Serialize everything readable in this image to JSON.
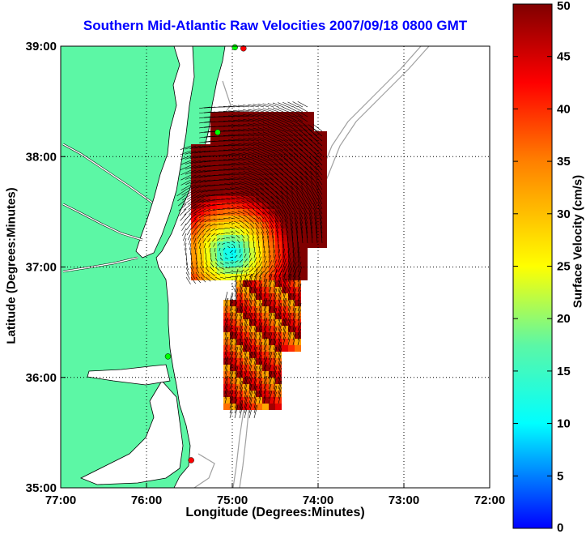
{
  "title": "Southern Mid-Atlantic Raw Velocities 2007/09/18 0800 GMT",
  "x_axis": {
    "label": "Longitude (Degrees:Minutes)",
    "ticks": [
      "77:00",
      "76:00",
      "75:00",
      "74:00",
      "73:00",
      "72:00"
    ]
  },
  "y_axis": {
    "label": "Latitude (Degrees:Minutes)",
    "ticks": [
      "39:00",
      "38:00",
      "37:00",
      "36:00",
      "35:00"
    ]
  },
  "colorbar": {
    "label": "Surface Velocity (cm/s)",
    "ticks": [
      "50",
      "45",
      "40",
      "35",
      "30",
      "25",
      "20",
      "15",
      "10",
      "5",
      "0"
    ],
    "range": [
      0,
      50
    ],
    "colormap": "jet"
  },
  "map": {
    "lon_range": [
      -77,
      -72
    ],
    "lat_range": [
      35,
      39
    ],
    "grid": "dotted",
    "land_color": "#5cf7a5",
    "bathymetry_color": "#a0a0a0",
    "eddy_center": {
      "lon": -75.05,
      "lat": 37.15
    },
    "stations": [
      {
        "lon": -74.87,
        "lat": 38.98,
        "status": "red"
      },
      {
        "lon": -74.97,
        "lat": 38.99,
        "status": "green"
      },
      {
        "lon": -75.17,
        "lat": 38.22,
        "status": "green"
      },
      {
        "lon": -75.75,
        "lat": 36.19,
        "status": "green"
      },
      {
        "lon": -75.48,
        "lat": 35.25,
        "status": "red"
      }
    ]
  }
}
